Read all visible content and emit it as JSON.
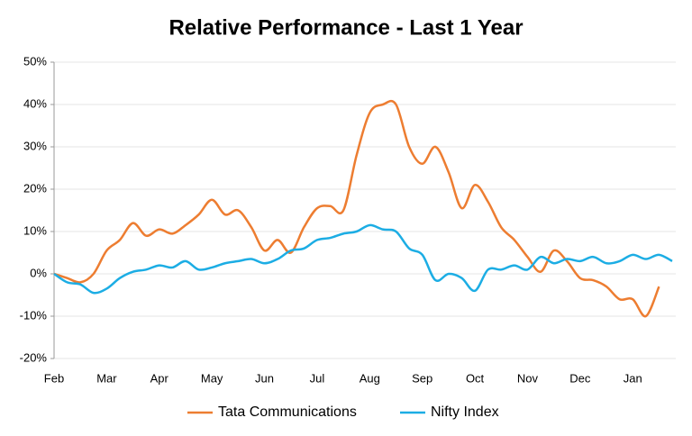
{
  "chart_data": {
    "type": "line",
    "title": "Relative Performance - Last 1 Year",
    "categories": [
      "Feb",
      null,
      null,
      null,
      "Mar",
      null,
      null,
      null,
      "Apr",
      null,
      null,
      null,
      "May",
      null,
      null,
      null,
      "Jun",
      null,
      null,
      null,
      "Jul",
      null,
      null,
      null,
      "Aug",
      null,
      null,
      null,
      "Sep",
      null,
      null,
      null,
      "Oct",
      null,
      null,
      null,
      "Nov",
      null,
      null,
      null,
      "Dec",
      null,
      null,
      null,
      "Jan",
      null,
      null,
      null
    ],
    "series": [
      {
        "name": "Tata Communications",
        "color": "#ed7d31",
        "values": [
          0,
          -1,
          -2,
          0,
          5.5,
          8,
          12,
          9,
          10.5,
          9.5,
          11.5,
          14,
          17.5,
          14,
          15,
          11,
          5.5,
          8,
          5,
          11,
          15.5,
          16,
          15,
          28,
          38,
          40,
          40,
          30,
          26,
          30,
          24,
          15.5,
          21,
          17,
          11,
          8,
          4,
          0.5,
          5.5,
          3,
          -1,
          -1.5,
          -3,
          -6,
          -6,
          -10,
          -3,
          null
        ]
      },
      {
        "name": "Nifty Index",
        "color": "#1cade4",
        "values": [
          0,
          -2,
          -2.5,
          -4.5,
          -3.5,
          -1,
          0.5,
          1,
          2,
          1.5,
          3,
          1,
          1.5,
          2.5,
          3,
          3.5,
          2.5,
          3.5,
          5.5,
          6,
          8,
          8.5,
          9.5,
          10,
          11.5,
          10.5,
          10,
          6,
          4.5,
          -1.5,
          0,
          -1,
          -4,
          1,
          1,
          2,
          1,
          4,
          2.5,
          3.5,
          3,
          4,
          2.5,
          3,
          4.5,
          3.5,
          4.5,
          3
        ]
      }
    ],
    "ylim": [
      -20,
      50
    ],
    "yticks": [
      {
        "value": -20,
        "label": "-20%"
      },
      {
        "value": -10,
        "label": "-10%"
      },
      {
        "value": 0,
        "label": "0%"
      },
      {
        "value": 10,
        "label": "10%"
      },
      {
        "value": 20,
        "label": "20%"
      },
      {
        "value": 30,
        "label": "30%"
      },
      {
        "value": 40,
        "label": "40%"
      },
      {
        "value": 50,
        "label": "50%"
      }
    ],
    "grid": true,
    "legend": "bottom"
  }
}
